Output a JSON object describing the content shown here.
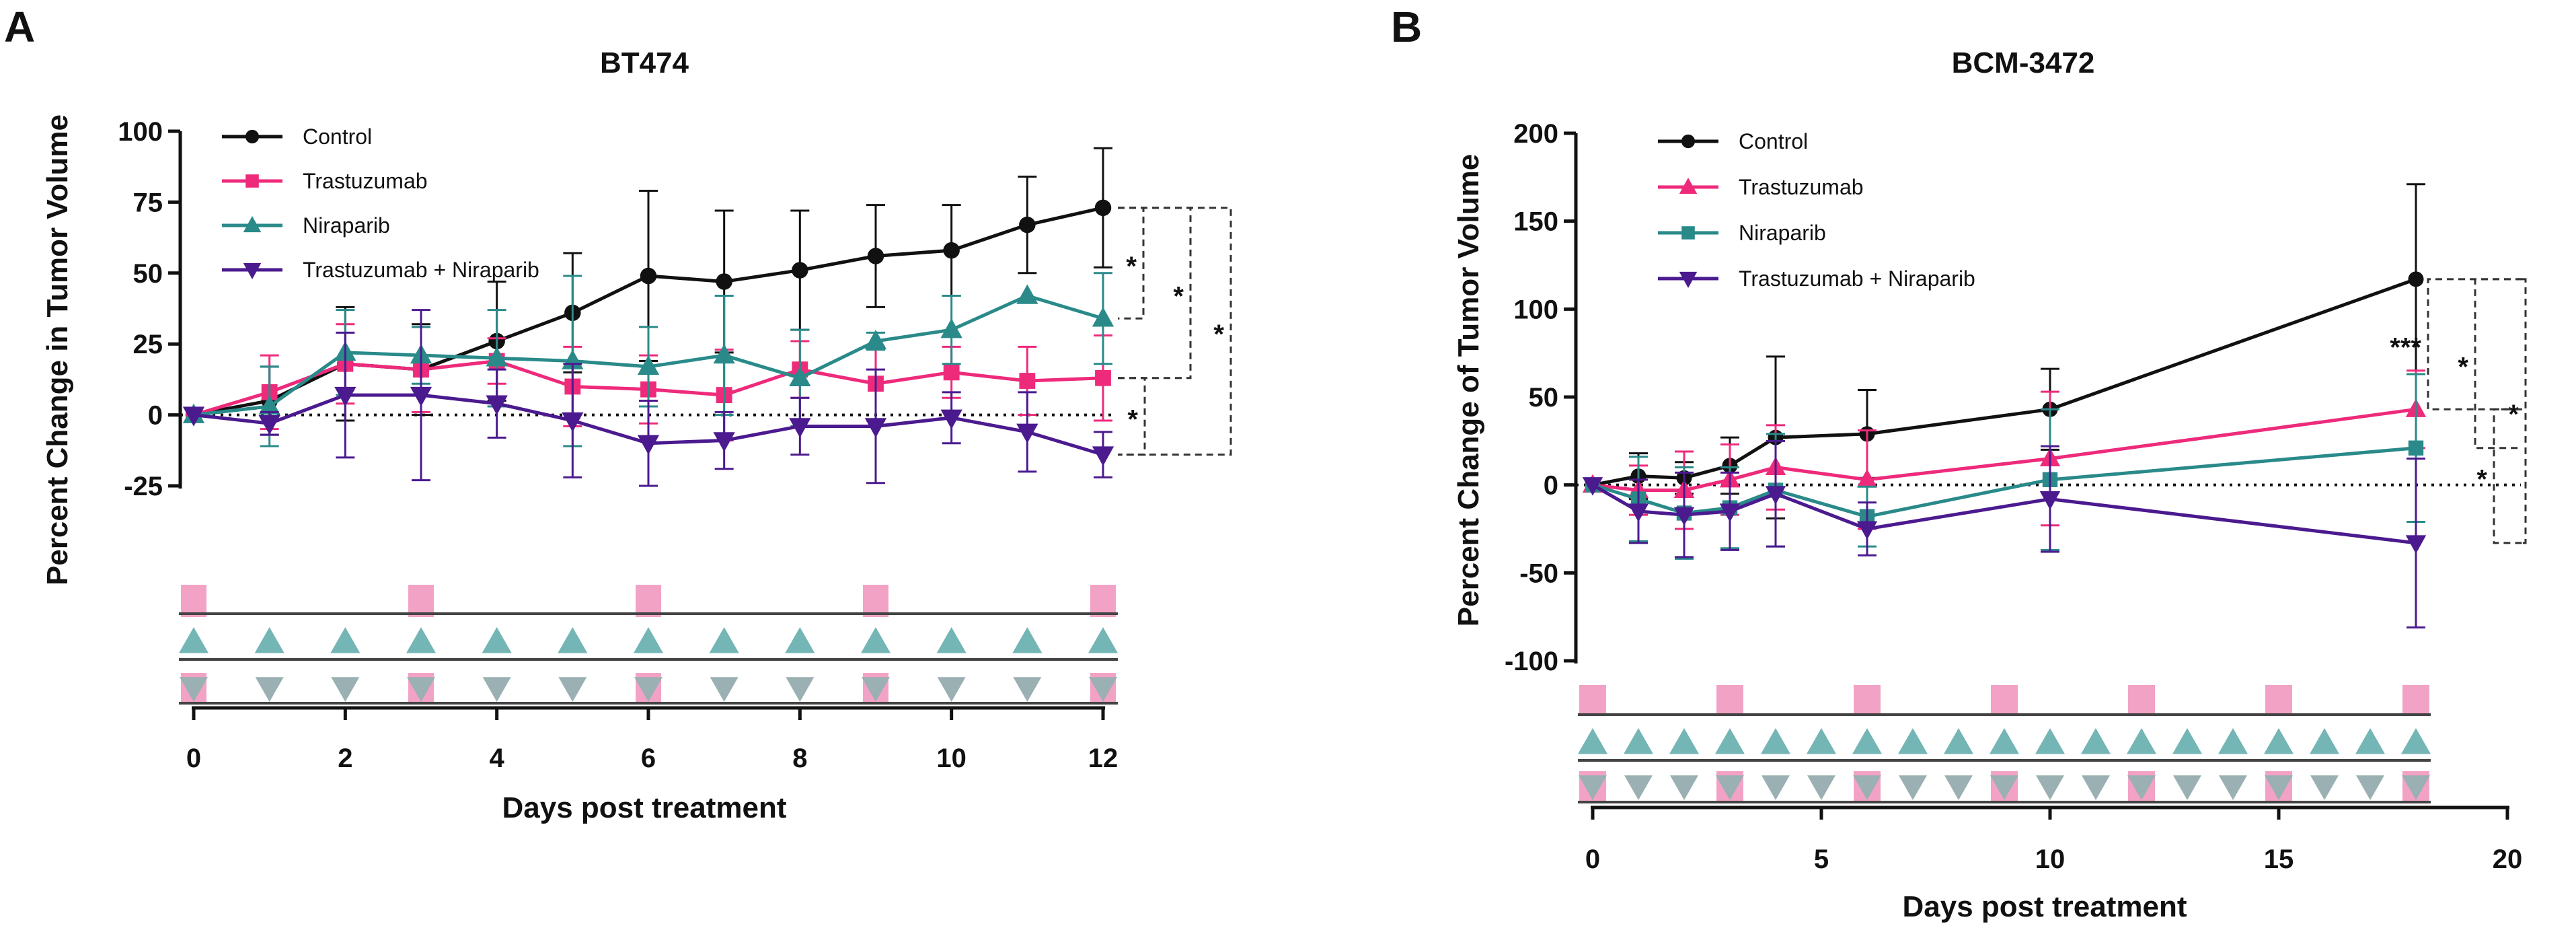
{
  "colors": {
    "control": "#111111",
    "trastuzumab": "#EE2A7B",
    "niraparib": "#2A8A8A",
    "combo": "#4B1A8F",
    "treat_pink": "#F2A3C5",
    "treat_teal": "#74B5B5",
    "treat_grey": "#9BB0B2"
  },
  "chart_data": [
    {
      "panel": "A",
      "type": "line",
      "title": "BT474",
      "xlabel": "Days post treatment",
      "ylabel": "Percent Change in Tumor Volume",
      "xlim": [
        0,
        12
      ],
      "ylim": [
        -25,
        100
      ],
      "xticks": [
        0,
        2,
        4,
        6,
        8,
        10,
        12
      ],
      "yticks": [
        -25,
        0,
        25,
        50,
        75,
        100
      ],
      "ytick_labels": [
        "-25",
        "0",
        "25",
        "50",
        "75",
        "100"
      ],
      "zero_line": "dotted",
      "legend": "top-left",
      "series": [
        {
          "key": "control",
          "name": "Control",
          "marker": "circle",
          "x": [
            0,
            1,
            2,
            3,
            4,
            5,
            6,
            7,
            8,
            9,
            10,
            11,
            12
          ],
          "y": [
            0,
            5,
            18,
            16,
            26,
            36,
            49,
            47,
            51,
            56,
            58,
            67,
            73
          ],
          "err": [
            0,
            12,
            20,
            16,
            21,
            21,
            30,
            25,
            21,
            18,
            16,
            17,
            21
          ]
        },
        {
          "key": "trastuzumab",
          "name": "Trastuzumab",
          "marker": "square",
          "x": [
            0,
            1,
            2,
            3,
            4,
            5,
            6,
            7,
            8,
            9,
            10,
            11,
            12
          ],
          "y": [
            0,
            8,
            18,
            16,
            19,
            10,
            9,
            7,
            16,
            11,
            15,
            12,
            13
          ],
          "err": [
            0,
            13,
            14,
            15,
            8,
            14,
            12,
            16,
            10,
            13,
            9,
            12,
            15
          ]
        },
        {
          "key": "niraparib",
          "name": "Niraparib",
          "marker": "triangle-up",
          "x": [
            0,
            1,
            2,
            3,
            4,
            5,
            6,
            7,
            8,
            9,
            10,
            11,
            12
          ],
          "y": [
            0,
            3,
            22,
            21,
            20,
            19,
            17,
            21,
            13,
            26,
            30,
            42,
            34
          ],
          "err": [
            0,
            14,
            15,
            10,
            17,
            30,
            14,
            21,
            17,
            3,
            12,
            0,
            16
          ]
        },
        {
          "key": "combo",
          "name": "Trastuzumab + Niraparib",
          "marker": "triangle-down",
          "x": [
            0,
            1,
            2,
            3,
            4,
            5,
            6,
            7,
            8,
            9,
            10,
            11,
            12
          ],
          "y": [
            0,
            -3,
            7,
            7,
            4,
            -2,
            -10,
            -9,
            -4,
            -4,
            -1,
            -6,
            -14
          ],
          "err": [
            0,
            4,
            22,
            30,
            12,
            20,
            15,
            10,
            10,
            20,
            9,
            14,
            8
          ]
        }
      ],
      "significance": [
        {
          "from": "control",
          "to": "niraparib",
          "label": "*"
        },
        {
          "from": "control",
          "to": "trastuzumab",
          "label": "*"
        },
        {
          "from": "control",
          "to": "combo",
          "label": "*"
        },
        {
          "from": "trastuzumab",
          "to": "combo",
          "label": "*"
        }
      ],
      "schedule": {
        "trastuzumab_days": [
          0,
          3,
          6,
          9,
          12
        ],
        "niraparib_days": [
          0,
          1,
          2,
          3,
          4,
          5,
          6,
          7,
          8,
          9,
          10,
          11,
          12
        ],
        "combo_days": [
          0,
          1,
          2,
          3,
          4,
          5,
          6,
          7,
          8,
          9,
          10,
          11,
          12
        ]
      }
    },
    {
      "panel": "B",
      "type": "line",
      "title": "BCM-3472",
      "xlabel": "Days post treatment",
      "ylabel": "Percent Change of Tumor Volume",
      "xlim": [
        0,
        20
      ],
      "ylim": [
        -100,
        200
      ],
      "xticks": [
        0,
        5,
        10,
        15,
        20
      ],
      "yticks": [
        -100,
        -50,
        0,
        50,
        100,
        150,
        200
      ],
      "ytick_labels": [
        "-100",
        "-50",
        "0",
        "50",
        "100",
        "150",
        "200"
      ],
      "zero_line": "dotted",
      "legend": "top-left",
      "series": [
        {
          "key": "control",
          "name": "Control",
          "marker": "circle",
          "x": [
            0,
            1,
            2,
            3,
            4,
            6,
            10,
            18
          ],
          "y": [
            0,
            5,
            4,
            11,
            27,
            29,
            43,
            117
          ],
          "err": [
            0,
            13,
            9,
            16,
            46,
            25,
            23,
            54
          ]
        },
        {
          "key": "trastuzumab",
          "name": "Trastuzumab",
          "marker": "triangle-up",
          "x": [
            0,
            1,
            2,
            3,
            4,
            6,
            10,
            18
          ],
          "y": [
            0,
            -3,
            -3,
            3,
            10,
            3,
            15,
            43
          ],
          "err": [
            0,
            14,
            22,
            20,
            24,
            28,
            38,
            22
          ]
        },
        {
          "key": "niraparib",
          "name": "Niraparib",
          "marker": "square",
          "x": [
            0,
            1,
            2,
            3,
            4,
            6,
            10,
            18
          ],
          "y": [
            0,
            -8,
            -16,
            -13,
            -3,
            -18,
            3,
            21
          ],
          "err": [
            0,
            24,
            26,
            23,
            32,
            17,
            40,
            42
          ]
        },
        {
          "key": "combo",
          "name": "Trastuzumab + Niraparib",
          "marker": "triangle-down",
          "x": [
            0,
            1,
            2,
            3,
            4,
            6,
            10,
            18
          ],
          "y": [
            0,
            -15,
            -17,
            -15,
            -5,
            -25,
            -8,
            -33
          ],
          "err": [
            0,
            18,
            24,
            22,
            30,
            15,
            30,
            48
          ]
        }
      ],
      "significance": [
        {
          "from": "control",
          "to": "trastuzumab",
          "label": "***"
        },
        {
          "from": "control",
          "to": "niraparib",
          "label": "*"
        },
        {
          "from": "control",
          "to": "combo",
          "label": "*"
        },
        {
          "from": "trastuzumab",
          "to": "combo",
          "label": "*"
        }
      ],
      "schedule": {
        "trastuzumab_days": [
          0,
          3,
          6,
          9,
          12,
          15,
          18
        ],
        "niraparib_days": [
          0,
          1,
          2,
          3,
          4,
          5,
          6,
          7,
          8,
          9,
          10,
          11,
          12,
          13,
          14,
          15,
          16,
          17,
          18
        ],
        "combo_days": [
          0,
          1,
          2,
          3,
          4,
          5,
          6,
          7,
          8,
          9,
          10,
          11,
          12,
          13,
          14,
          15,
          16,
          17,
          18
        ]
      }
    }
  ]
}
